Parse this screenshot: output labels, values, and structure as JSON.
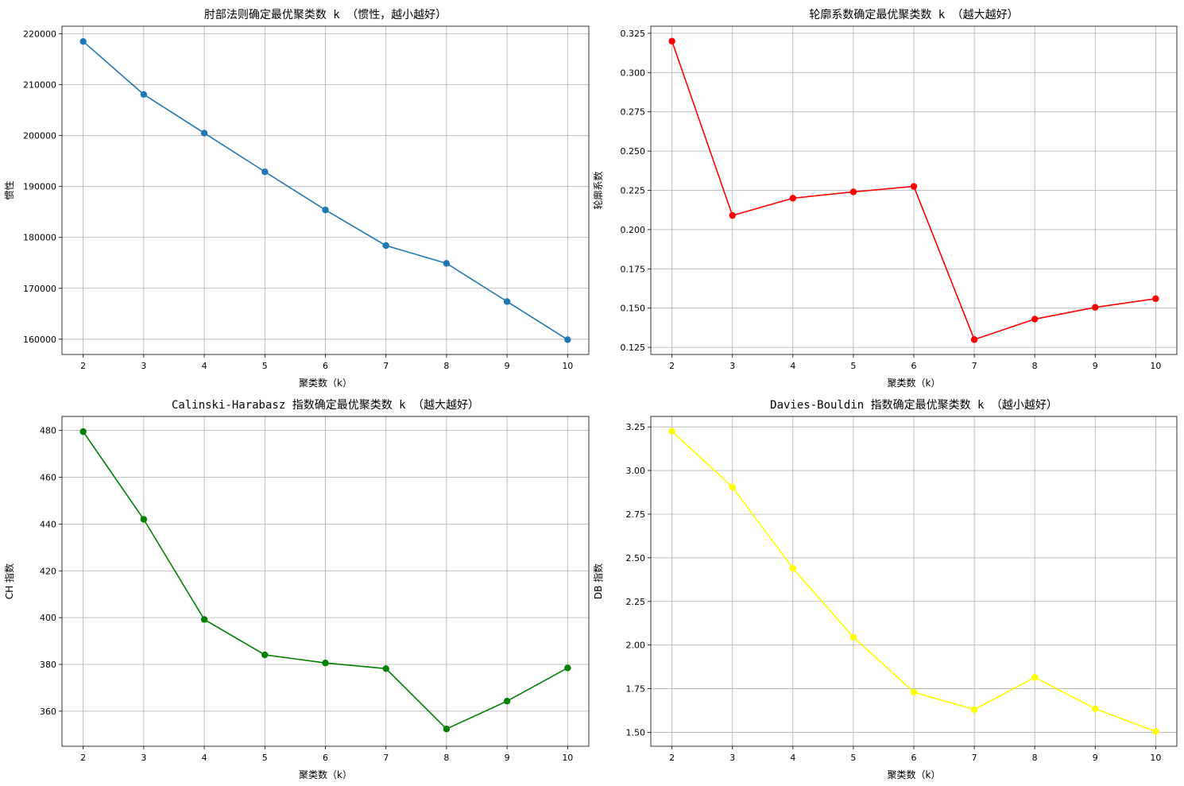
{
  "chart_data": [
    {
      "type": "line",
      "title": "肘部法则确定最优聚类数 k （惯性，越小越好）",
      "xlabel": "聚类数（k）",
      "ylabel": "惯性",
      "x": [
        2,
        3,
        4,
        5,
        6,
        7,
        8,
        9,
        10
      ],
      "series": [
        {
          "values": [
            218500,
            208100,
            200500,
            192900,
            185400,
            178400,
            174900,
            167400,
            159900
          ]
        }
      ],
      "xlim": [
        1.65,
        10.35
      ],
      "ylim": [
        157000,
        221500
      ],
      "xticks": [
        2,
        3,
        4,
        5,
        6,
        7,
        8,
        9,
        10
      ],
      "yticks": [
        160000,
        170000,
        180000,
        190000,
        200000,
        210000,
        220000
      ],
      "ytick_labels": [
        "160000",
        "170000",
        "180000",
        "190000",
        "200000",
        "210000",
        "220000"
      ],
      "color": "#1f77b4",
      "grid": true
    },
    {
      "type": "line",
      "title": "轮廓系数确定最优聚类数 k （越大越好）",
      "xlabel": "聚类数（k）",
      "ylabel": "轮廓系数",
      "x": [
        2,
        3,
        4,
        5,
        6,
        7,
        8,
        9,
        10
      ],
      "series": [
        {
          "values": [
            0.32,
            0.209,
            0.22,
            0.224,
            0.2275,
            0.13,
            0.143,
            0.1505,
            0.156
          ]
        }
      ],
      "xlim": [
        1.65,
        10.35
      ],
      "ylim": [
        0.1205,
        0.3295
      ],
      "xticks": [
        2,
        3,
        4,
        5,
        6,
        7,
        8,
        9,
        10
      ],
      "yticks": [
        0.125,
        0.15,
        0.175,
        0.2,
        0.225,
        0.25,
        0.275,
        0.3,
        0.325
      ],
      "ytick_labels": [
        "0.125",
        "0.150",
        "0.175",
        "0.200",
        "0.225",
        "0.250",
        "0.275",
        "0.300",
        "0.325"
      ],
      "color": "#ff0000",
      "grid": true
    },
    {
      "type": "line",
      "title": "Calinski-Harabasz 指数确定最优聚类数 k （越大越好）",
      "xlabel": "聚类数（k）",
      "ylabel": "CH 指数",
      "x": [
        2,
        3,
        4,
        5,
        6,
        7,
        8,
        9,
        10
      ],
      "series": [
        {
          "values": [
            479.5,
            442,
            399.2,
            384.1,
            380.6,
            378.2,
            352.4,
            364.3,
            378.5
          ]
        }
      ],
      "xlim": [
        1.65,
        10.35
      ],
      "ylim": [
        345.0,
        486.0
      ],
      "xticks": [
        2,
        3,
        4,
        5,
        6,
        7,
        8,
        9,
        10
      ],
      "yticks": [
        360,
        380,
        400,
        420,
        440,
        460,
        480
      ],
      "ytick_labels": [
        "360",
        "380",
        "400",
        "420",
        "440",
        "460",
        "480"
      ],
      "color": "#008000",
      "grid": true
    },
    {
      "type": "line",
      "title": "Davies-Bouldin 指数确定最优聚类数 k （越小越好）",
      "xlabel": "聚类数（k）",
      "ylabel": "DB 指数",
      "x": [
        2,
        3,
        4,
        5,
        6,
        7,
        8,
        9,
        10
      ],
      "series": [
        {
          "values": [
            3.225,
            2.905,
            2.44,
            2.045,
            1.73,
            1.63,
            1.815,
            1.635,
            1.505
          ]
        }
      ],
      "xlim": [
        1.65,
        10.35
      ],
      "ylim": [
        1.42,
        3.31
      ],
      "xticks": [
        2,
        3,
        4,
        5,
        6,
        7,
        8,
        9,
        10
      ],
      "yticks": [
        1.5,
        1.75,
        2.0,
        2.25,
        2.5,
        2.75,
        3.0,
        3.25
      ],
      "ytick_labels": [
        "1.50",
        "1.75",
        "2.00",
        "2.25",
        "2.50",
        "2.75",
        "3.00",
        "3.25"
      ],
      "color": "#ffff00",
      "grid": true
    }
  ]
}
